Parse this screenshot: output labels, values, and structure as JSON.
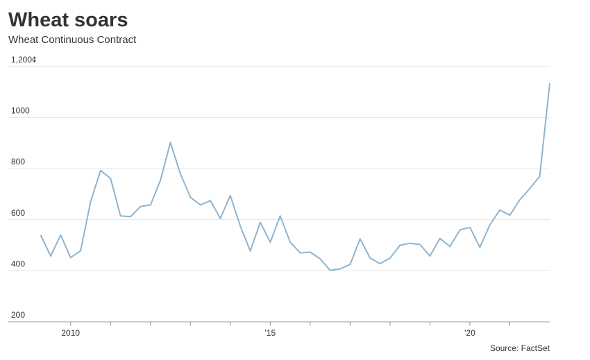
{
  "chart_data": {
    "type": "line",
    "title": "Wheat soars",
    "subtitle": "Wheat Continuous Contract",
    "source": "Source: FactSet",
    "x": [
      2009.25,
      2009.5,
      2009.75,
      2010,
      2010.25,
      2010.5,
      2010.75,
      2011,
      2011.25,
      2011.5,
      2011.75,
      2012,
      2012.25,
      2012.5,
      2012.75,
      2013,
      2013.25,
      2013.5,
      2013.75,
      2014,
      2014.25,
      2014.5,
      2014.75,
      2015,
      2015.25,
      2015.5,
      2015.75,
      2016,
      2016.25,
      2016.5,
      2016.75,
      2017,
      2017.25,
      2017.5,
      2017.75,
      2018,
      2018.25,
      2018.5,
      2018.75,
      2019,
      2019.25,
      2019.5,
      2019.75,
      2020,
      2020.25,
      2020.5,
      2020.75,
      2021,
      2021.25,
      2021.5,
      2021.75,
      2022
    ],
    "series": [
      {
        "name": "Wheat",
        "color": "#8db4d0",
        "values": [
          540,
          458,
          540,
          452,
          478,
          670,
          793,
          762,
          615,
          612,
          652,
          658,
          755,
          903,
          780,
          688,
          658,
          675,
          605,
          695,
          575,
          478,
          590,
          512,
          615,
          512,
          470,
          473,
          447,
          402,
          408,
          425,
          525,
          450,
          428,
          450,
          500,
          508,
          503,
          458,
          527,
          495,
          560,
          570,
          492,
          580,
          638,
          618,
          678,
          722,
          770,
          1135
        ]
      }
    ],
    "xlim": [
      2008.44,
      2022
    ],
    "xticks": [
      {
        "value": 2010,
        "label": "2010"
      },
      {
        "value": 2015,
        "label": "'15"
      },
      {
        "value": 2020,
        "label": "'20"
      }
    ],
    "xminorticks": [
      2010,
      2011,
      2012,
      2013,
      2014,
      2015,
      2016,
      2017,
      2018,
      2019,
      2020,
      2021
    ],
    "ylim": [
      200,
      1200
    ],
    "yticks": [
      200,
      400,
      600,
      800,
      1000,
      {
        "value": 1200,
        "label": "1,200¢"
      }
    ],
    "grid": true
  }
}
